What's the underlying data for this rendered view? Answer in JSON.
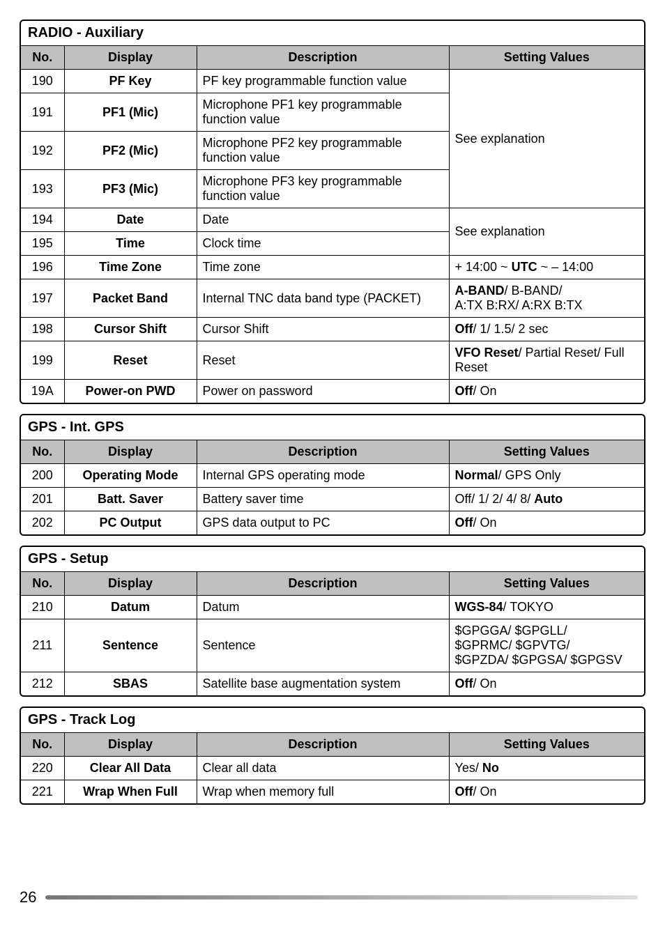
{
  "page_number": "26",
  "sections": [
    {
      "title": "RADIO - Auxiliary",
      "headers": [
        "No.",
        "Display",
        "Description",
        "Setting Values"
      ],
      "rows": [
        {
          "no": "190",
          "display": "PF Key",
          "description": "PF key programmable function value",
          "setting_html": "See explanation",
          "setting_rowspan": 4
        },
        {
          "no": "191",
          "display": "PF1 (Mic)",
          "description": "Microphone PF1 key programmable function value"
        },
        {
          "no": "192",
          "display": "PF2 (Mic)",
          "description": "Microphone PF2 key programmable function value"
        },
        {
          "no": "193",
          "display": "PF3 (Mic)",
          "description": "Microphone PF3 key programmable function value"
        },
        {
          "no": "194",
          "display": "Date",
          "description": "Date",
          "setting_html": "See explanation",
          "setting_rowspan": 2
        },
        {
          "no": "195",
          "display": "Time",
          "description": "Clock time"
        },
        {
          "no": "196",
          "display": "Time Zone",
          "description": "Time zone",
          "setting_html": "+ 14:00 ~ <span class='b'>UTC</span>  ~ – 14:00"
        },
        {
          "no": "197",
          "display": "Packet Band",
          "description": "Internal TNC data band  type (PACKET)",
          "setting_html": "<span class='b'>A-BAND</span>/ B-BAND/<br>A:TX B:RX/ A:RX B:TX"
        },
        {
          "no": "198",
          "display": "Cursor Shift",
          "description": "Cursor Shift",
          "setting_html": "<span class='b'>Off</span>/ 1/ 1.5/ 2 sec"
        },
        {
          "no": "199",
          "display": "Reset",
          "description": "Reset",
          "setting_html": "<span class='b'>VFO Reset</span>/ Partial Reset/ Full Reset"
        },
        {
          "no": "19A",
          "display": "Power-on PWD",
          "description": "Power on password",
          "setting_html": "<span class='b'>Off</span>/ On"
        }
      ]
    },
    {
      "title": "GPS - Int. GPS",
      "headers": [
        "No.",
        "Display",
        "Description",
        "Setting Values"
      ],
      "rows": [
        {
          "no": "200",
          "display": "Operating Mode",
          "description": "Internal GPS operating mode",
          "setting_html": "<span class='b'>Normal</span>/ GPS Only"
        },
        {
          "no": "201",
          "display": "Batt. Saver",
          "description": "Battery saver time",
          "setting_html": "Off/ 1/ 2/ 4/ 8/ <span class='b'>Auto</span>"
        },
        {
          "no": "202",
          "display": "PC Output",
          "description": "GPS data output to PC",
          "setting_html": "<span class='b'>Off</span>/ On"
        }
      ]
    },
    {
      "title": "GPS - Setup",
      "headers": [
        "No.",
        "Display",
        "Description",
        "Setting Values"
      ],
      "rows": [
        {
          "no": "210",
          "display": "Datum",
          "description": "Datum",
          "setting_html": "<span class='b'>WGS-84</span>/ TOKYO"
        },
        {
          "no": "211",
          "display": "Sentence",
          "description": "Sentence",
          "setting_html": "$GPGGA/ $GPGLL/<br>$GPRMC/ $GPVTG/<br>$GPZDA/ $GPGSA/ $GPGSV"
        },
        {
          "no": "212",
          "display": "SBAS",
          "description": "Satellite base augmentation system",
          "setting_html": "<span class='b'>Off</span>/ On"
        }
      ]
    },
    {
      "title": "GPS - Track Log",
      "headers": [
        "No.",
        "Display",
        "Description",
        "Setting Values"
      ],
      "rows": [
        {
          "no": "220",
          "display": "Clear All Data",
          "description": "Clear all data",
          "setting_html": "Yes/ <span class='b'>No</span>"
        },
        {
          "no": "221",
          "display": "Wrap When Full",
          "description": "Wrap when memory full",
          "setting_html": "<span class='b'>Off</span>/ On"
        }
      ]
    }
  ]
}
